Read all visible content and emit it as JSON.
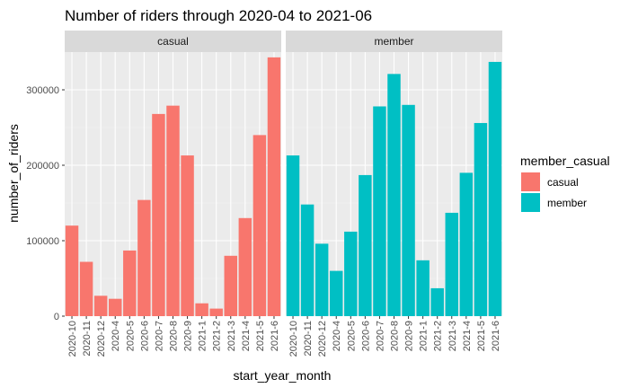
{
  "chart_data": {
    "type": "bar",
    "title": "Number of riders through 2020-04 to 2021-06",
    "xlabel": "start_year_month",
    "ylabel": "number_of_riders",
    "ylim": [
      0,
      350000
    ],
    "y_ticks": [
      0,
      100000,
      200000,
      300000
    ],
    "y_tick_labels": [
      "0",
      "100000",
      "200000",
      "300000"
    ],
    "grid": true,
    "legend_title": "member_casual",
    "legend_position": "right",
    "categories": [
      "2020-10",
      "2020-11",
      "2020-12",
      "2020-4",
      "2020-5",
      "2020-6",
      "2020-7",
      "2020-8",
      "2020-9",
      "2021-1",
      "2021-2",
      "2021-3",
      "2021-4",
      "2021-5",
      "2021-6"
    ],
    "series": [
      {
        "name": "casual",
        "color": "#F8766D",
        "values": [
          120000,
          72000,
          27000,
          23000,
          87000,
          154000,
          268000,
          279000,
          213000,
          17000,
          10000,
          80000,
          130000,
          240000,
          343000
        ]
      },
      {
        "name": "member",
        "color": "#00BFC4",
        "values": [
          213000,
          148000,
          96000,
          60000,
          112000,
          187000,
          278000,
          321000,
          280000,
          74000,
          37000,
          137000,
          190000,
          256000,
          337000
        ]
      }
    ]
  }
}
